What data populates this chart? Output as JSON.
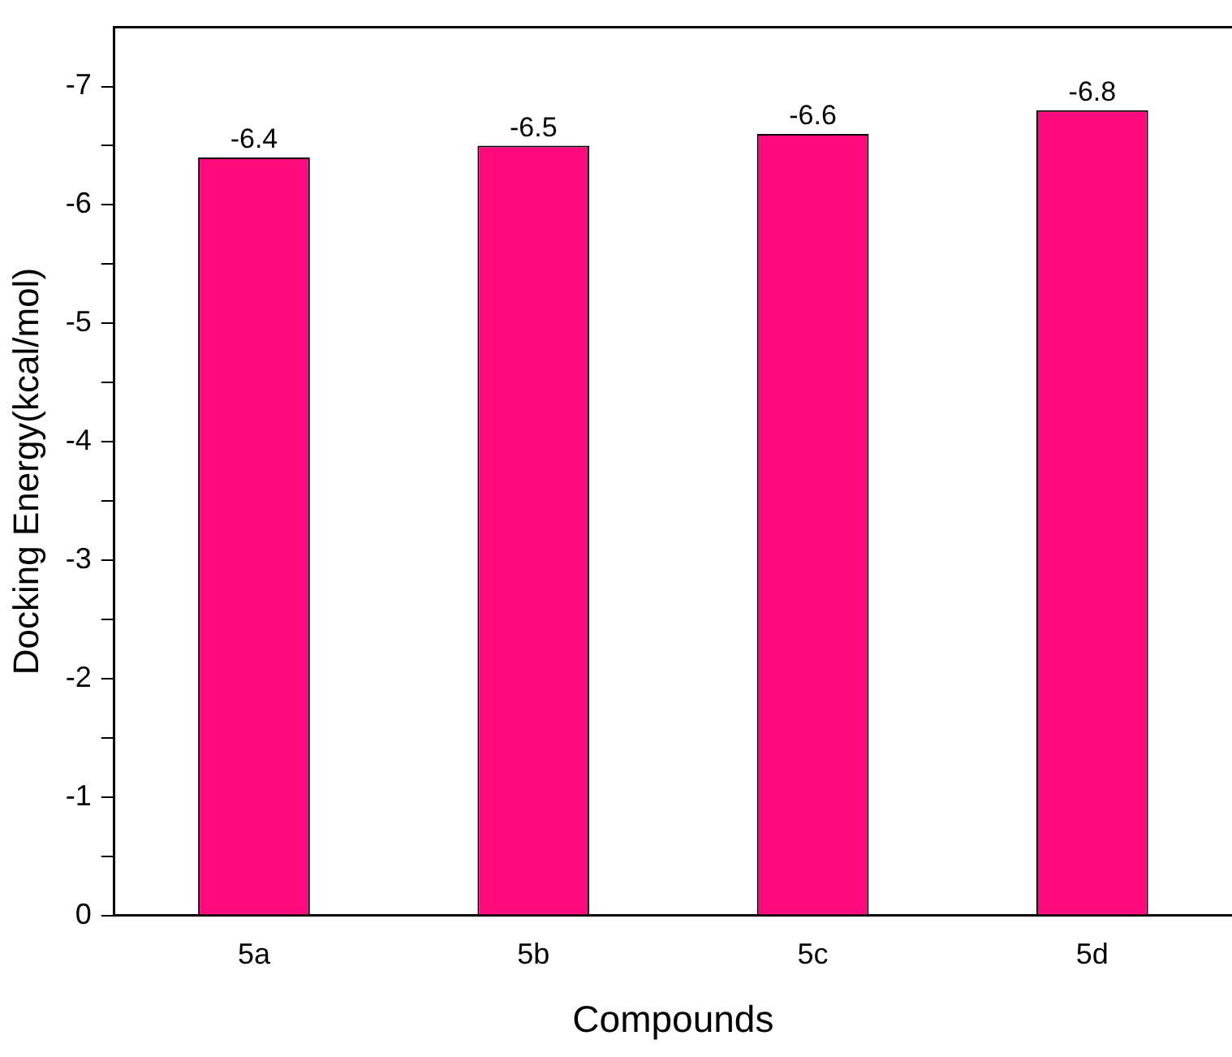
{
  "chart_data": {
    "type": "bar",
    "xlabel": "Compounds",
    "ylabel": "Docking Energy(kcal/mol)",
    "categories": [
      "5a",
      "5b",
      "5c",
      "5d"
    ],
    "values": [
      -6.4,
      -6.5,
      -6.6,
      -6.8
    ],
    "color": "#ff0a7f",
    "ylim": [
      0,
      -7.5
    ],
    "yticks": [
      0,
      {
        "value": -0.5,
        "label": null
      },
      -1,
      {
        "value": -1.5,
        "label": null
      },
      -2,
      {
        "value": -2.5,
        "label": null
      },
      -3,
      {
        "value": -3.5,
        "label": null
      },
      -4,
      {
        "value": -4.5,
        "label": null
      },
      -5,
      {
        "value": -5.5,
        "label": null
      },
      -6,
      {
        "value": -6.5,
        "label": null
      },
      -7
    ],
    "data_labels": true,
    "grid": false,
    "legend": false
  }
}
